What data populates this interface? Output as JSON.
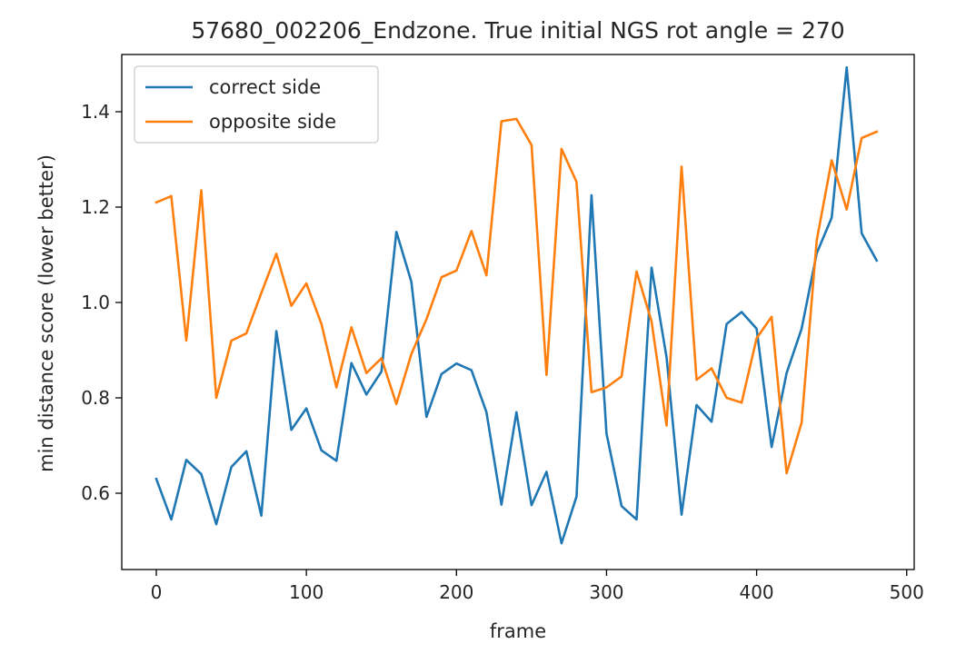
{
  "chart_data": {
    "type": "line",
    "title": "57680_002206_Endzone. True initial NGS rot angle = 270",
    "xlabel": "frame",
    "ylabel": "min distance score (lower better)",
    "xlim": [
      -23,
      505
    ],
    "ylim": [
      0.44,
      1.52
    ],
    "xticks": [
      0,
      100,
      200,
      300,
      400,
      500
    ],
    "yticks": [
      0.6,
      0.8,
      1.0,
      1.2,
      1.4
    ],
    "xtick_labels": [
      "0",
      "100",
      "200",
      "300",
      "400",
      "500"
    ],
    "ytick_labels": [
      "0.6",
      "0.8",
      "1.0",
      "1.2",
      "1.4"
    ],
    "grid": false,
    "legend_position": "upper-left",
    "x": [
      0,
      10,
      20,
      30,
      40,
      50,
      60,
      70,
      80,
      90,
      100,
      110,
      120,
      130,
      140,
      150,
      160,
      170,
      180,
      190,
      200,
      210,
      220,
      230,
      240,
      250,
      260,
      270,
      280,
      290,
      300,
      310,
      320,
      330,
      340,
      350,
      360,
      370,
      380,
      390,
      400,
      410,
      420,
      430,
      440,
      450,
      460,
      470,
      480
    ],
    "series": [
      {
        "name": "correct side",
        "color": "#1f77b4",
        "values": [
          0.63,
          0.545,
          0.67,
          0.64,
          0.535,
          0.655,
          0.688,
          0.553,
          0.94,
          0.733,
          0.778,
          0.69,
          0.668,
          0.873,
          0.807,
          0.855,
          1.148,
          1.043,
          0.76,
          0.85,
          0.872,
          0.858,
          0.77,
          0.576,
          0.77,
          0.575,
          0.645,
          0.495,
          0.593,
          1.225,
          0.725,
          0.573,
          0.545,
          1.073,
          0.885,
          0.555,
          0.785,
          0.75,
          0.955,
          0.98,
          0.945,
          0.697,
          0.852,
          0.945,
          1.103,
          1.178,
          1.493,
          1.145,
          1.088
        ]
      },
      {
        "name": "opposite side",
        "color": "#ff7f0e",
        "values": [
          1.21,
          1.223,
          0.92,
          1.235,
          0.8,
          0.92,
          0.935,
          1.02,
          1.102,
          0.993,
          1.04,
          0.955,
          0.822,
          0.948,
          0.852,
          0.883,
          0.787,
          0.892,
          0.965,
          1.053,
          1.067,
          1.15,
          1.057,
          1.38,
          1.385,
          1.33,
          0.848,
          1.322,
          1.253,
          0.812,
          0.822,
          0.845,
          1.065,
          0.96,
          0.742,
          1.285,
          0.838,
          0.862,
          0.8,
          0.79,
          0.925,
          0.97,
          0.642,
          0.748,
          1.13,
          1.298,
          1.195,
          1.345,
          1.358
        ]
      }
    ]
  }
}
